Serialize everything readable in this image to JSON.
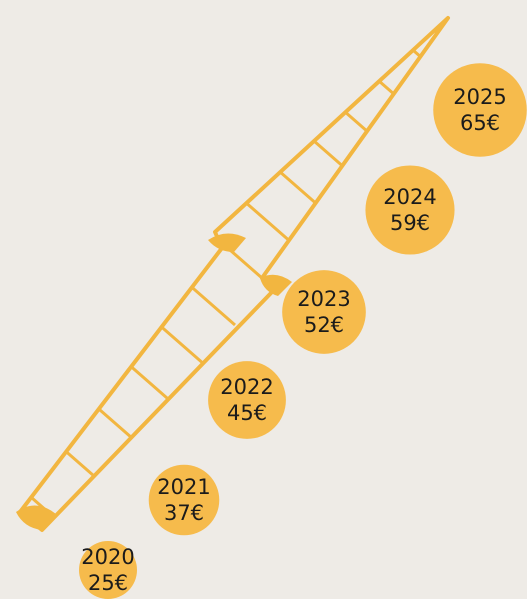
{
  "chart_data": {
    "type": "bubble",
    "categories": [
      "2020",
      "2021",
      "2022",
      "2023",
      "2024",
      "2025"
    ],
    "values": [
      25,
      37,
      45,
      52,
      59,
      65
    ],
    "value_labels": [
      "25€",
      "37€",
      "45€",
      "52€",
      "59€",
      "65€"
    ],
    "color": "#f6bb4c"
  }
}
